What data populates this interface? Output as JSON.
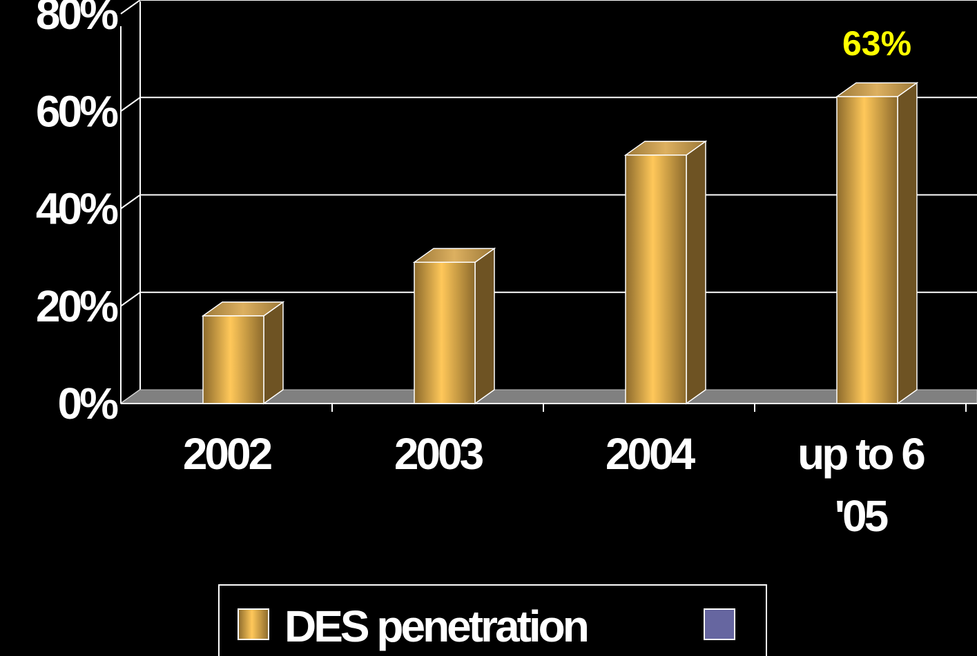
{
  "chart_data": {
    "type": "bar",
    "categories": [
      "2002",
      "2003",
      "2004",
      "up to 6 '05"
    ],
    "category_lines": [
      [
        "2002"
      ],
      [
        "2003"
      ],
      [
        "2004"
      ],
      [
        "up to 6",
        "'05"
      ]
    ],
    "series": [
      {
        "name": "DES penetration",
        "values": [
          18,
          29,
          51,
          63
        ],
        "color": "#ffc85a"
      }
    ],
    "extra_legend_swatch_color": "#6666a0",
    "data_labels": [
      {
        "index": 3,
        "text": "63%"
      }
    ],
    "yticks": [
      "0%",
      "20%",
      "40%",
      "60%",
      "80%"
    ],
    "ylim": [
      0,
      80
    ],
    "grid": true,
    "legend_placement": "bottom",
    "background": "#000000",
    "gridline_color": "#ffffff",
    "floor_color": "#808080",
    "data_label_color": "#ffff00"
  }
}
